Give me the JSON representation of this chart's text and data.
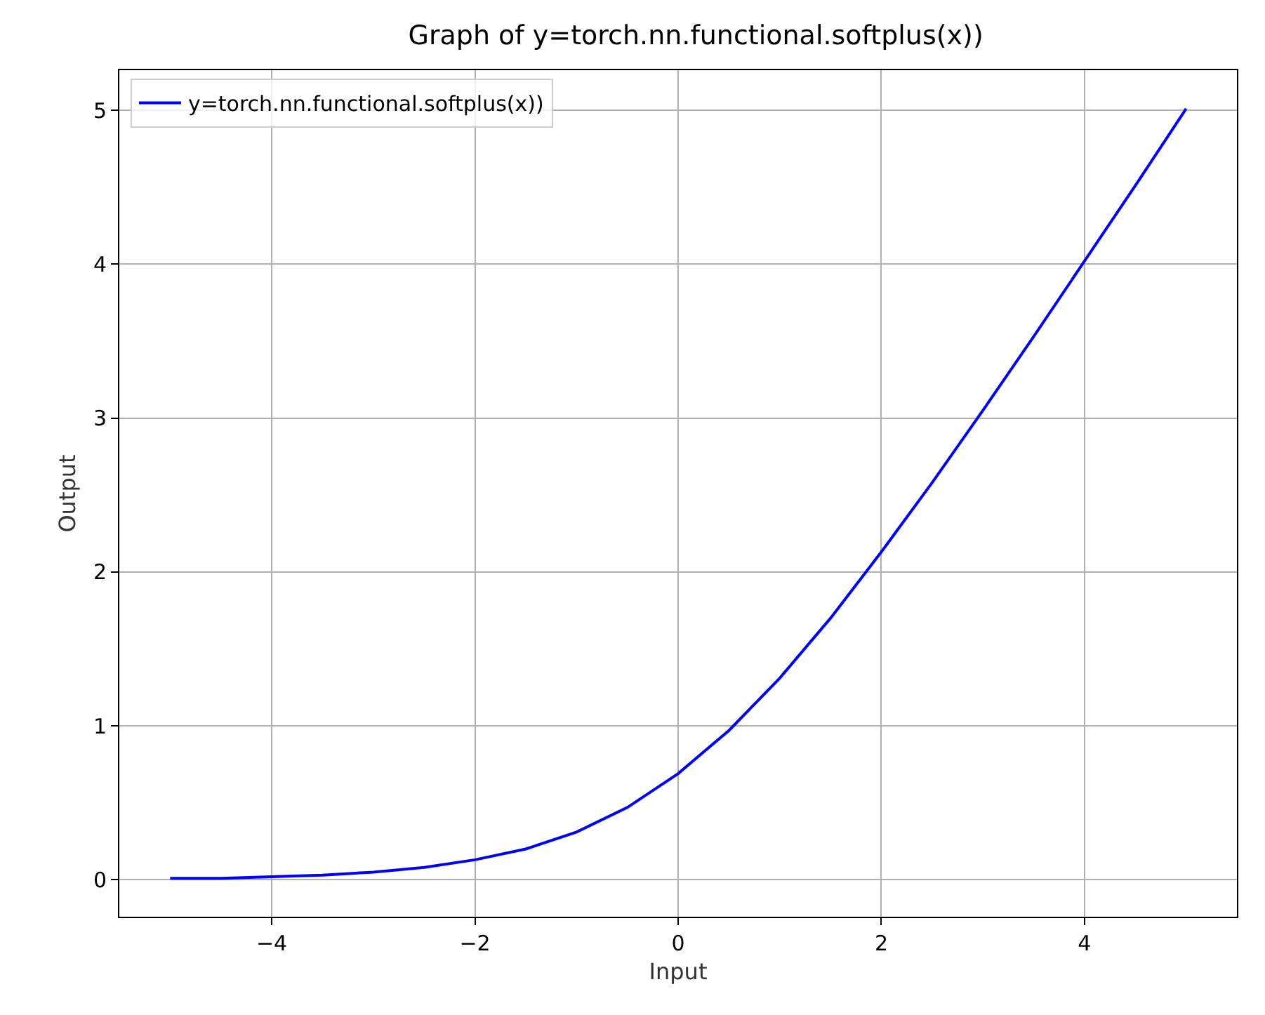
{
  "chart_data": {
    "type": "line",
    "title": "Graph of y=torch.nn.functional.softplus(x))",
    "xlabel": "Input",
    "ylabel": "Output",
    "x": [
      -5,
      -4.5,
      -4,
      -3.5,
      -3,
      -2.5,
      -2,
      -1.5,
      -1,
      -0.5,
      0,
      0.5,
      1,
      1.5,
      2,
      2.5,
      3,
      3.5,
      4,
      4.5,
      5
    ],
    "series": [
      {
        "name": "y=torch.nn.functional.softplus(x))",
        "color": "#0000ff",
        "values": [
          0.01,
          0.01,
          0.02,
          0.03,
          0.05,
          0.08,
          0.13,
          0.2,
          0.31,
          0.47,
          0.69,
          0.97,
          1.31,
          1.7,
          2.13,
          2.58,
          3.05,
          3.53,
          4.02,
          4.51,
          5.01
        ]
      }
    ],
    "xlim": [
      -5.5,
      5.5
    ],
    "ylim": [
      -0.24,
      5.26
    ],
    "xticks": [
      {
        "value": -4,
        "label": "−4"
      },
      {
        "value": -2,
        "label": "−2"
      },
      0,
      2,
      4
    ],
    "yticks": [
      0,
      1,
      2,
      3,
      4,
      5
    ],
    "grid": true,
    "legend": "top left",
    "marker": "none",
    "line_style": "solid"
  }
}
